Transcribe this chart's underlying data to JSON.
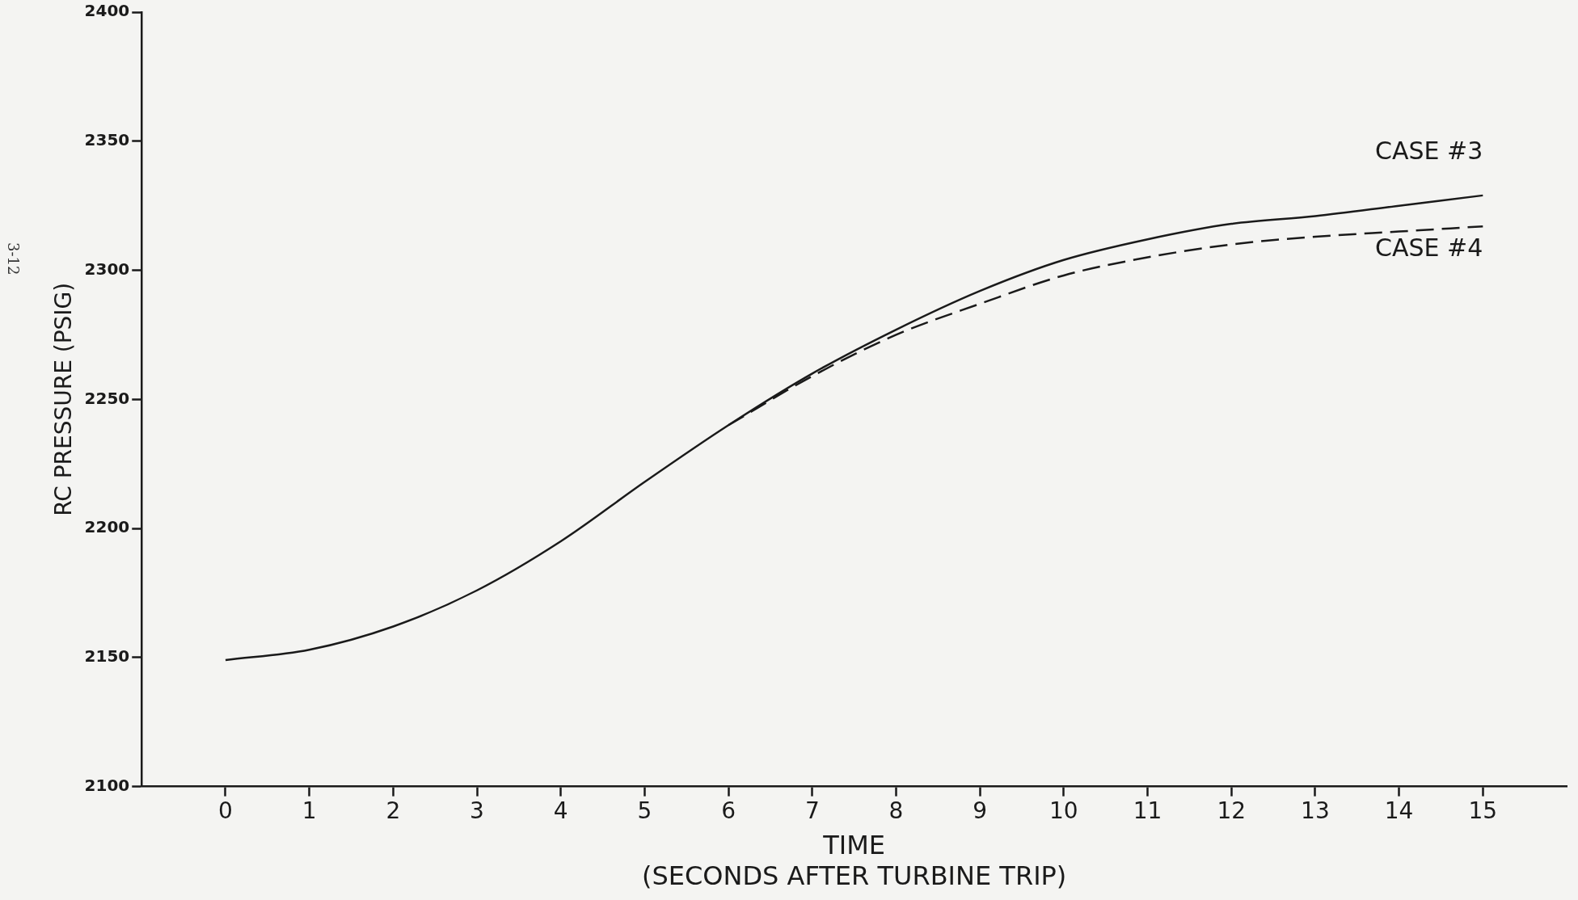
{
  "chart_data": {
    "type": "line",
    "xlabel": "TIME\n(SECONDS AFTER TURBINE TRIP)",
    "ylabel": "RC PRESSURE (PSIG)",
    "annotations": [
      "3-12"
    ],
    "xlim": [
      -1,
      16
    ],
    "xticks": [
      0,
      1,
      2,
      3,
      4,
      5,
      6,
      7,
      8,
      9,
      10,
      11,
      12,
      13,
      14,
      15
    ],
    "ylim": [
      2100,
      2400
    ],
    "yticks": [
      2100,
      2150,
      2200,
      2250,
      2300,
      2350,
      2400
    ],
    "grid": false,
    "legend": false,
    "marker": "none",
    "series": [
      {
        "name": "CASE #3",
        "color": "#1a1a1a",
        "line_style": "solid",
        "x": [
          0,
          1,
          2,
          3,
          4,
          5,
          6,
          7,
          8,
          9,
          10,
          11,
          12,
          13,
          14,
          15
        ],
        "values": [
          2149,
          2153,
          2162,
          2176,
          2195,
          2218,
          2240,
          2260,
          2277,
          2292,
          2304,
          2312,
          2318,
          2321,
          2325,
          2329
        ]
      },
      {
        "name": "CASE #4",
        "color": "#1a1a1a",
        "line_style": "dashed",
        "x": [
          6,
          7,
          8,
          9,
          10,
          11,
          12,
          13,
          14,
          15
        ],
        "values": [
          2240,
          2259,
          2275,
          2287,
          2298,
          2305,
          2310,
          2313,
          2315,
          2317
        ]
      }
    ]
  }
}
